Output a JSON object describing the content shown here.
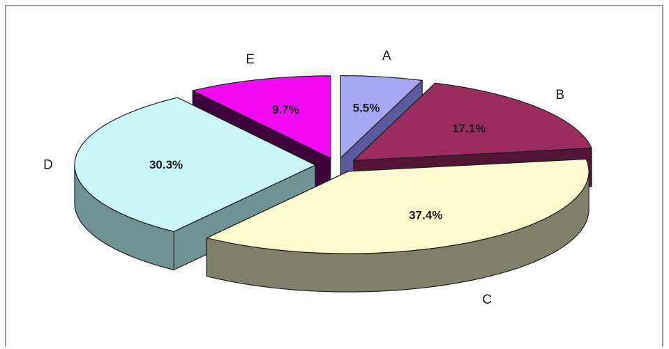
{
  "chart_data": {
    "type": "pie",
    "categories": [
      "A",
      "B",
      "C",
      "D",
      "E"
    ],
    "values": [
      5.5,
      17.1,
      37.4,
      30.3,
      9.7
    ],
    "value_labels": [
      "5.5%",
      "17.1%",
      "37.4%",
      "30.3%",
      "9.7%"
    ],
    "style": "3d-exploded",
    "legend": "none",
    "colors": {
      "A": {
        "top": "#a9a6f5",
        "side": "#5b5a9e"
      },
      "B": {
        "top": "#9b2d5e",
        "side": "#521634"
      },
      "C": {
        "top": "#fcfbcf",
        "side": "#80806a"
      },
      "D": {
        "top": "#ccf7f9",
        "side": "#6e9392"
      },
      "E": {
        "top": "#f40af2",
        "side": "#3d023a"
      }
    }
  }
}
